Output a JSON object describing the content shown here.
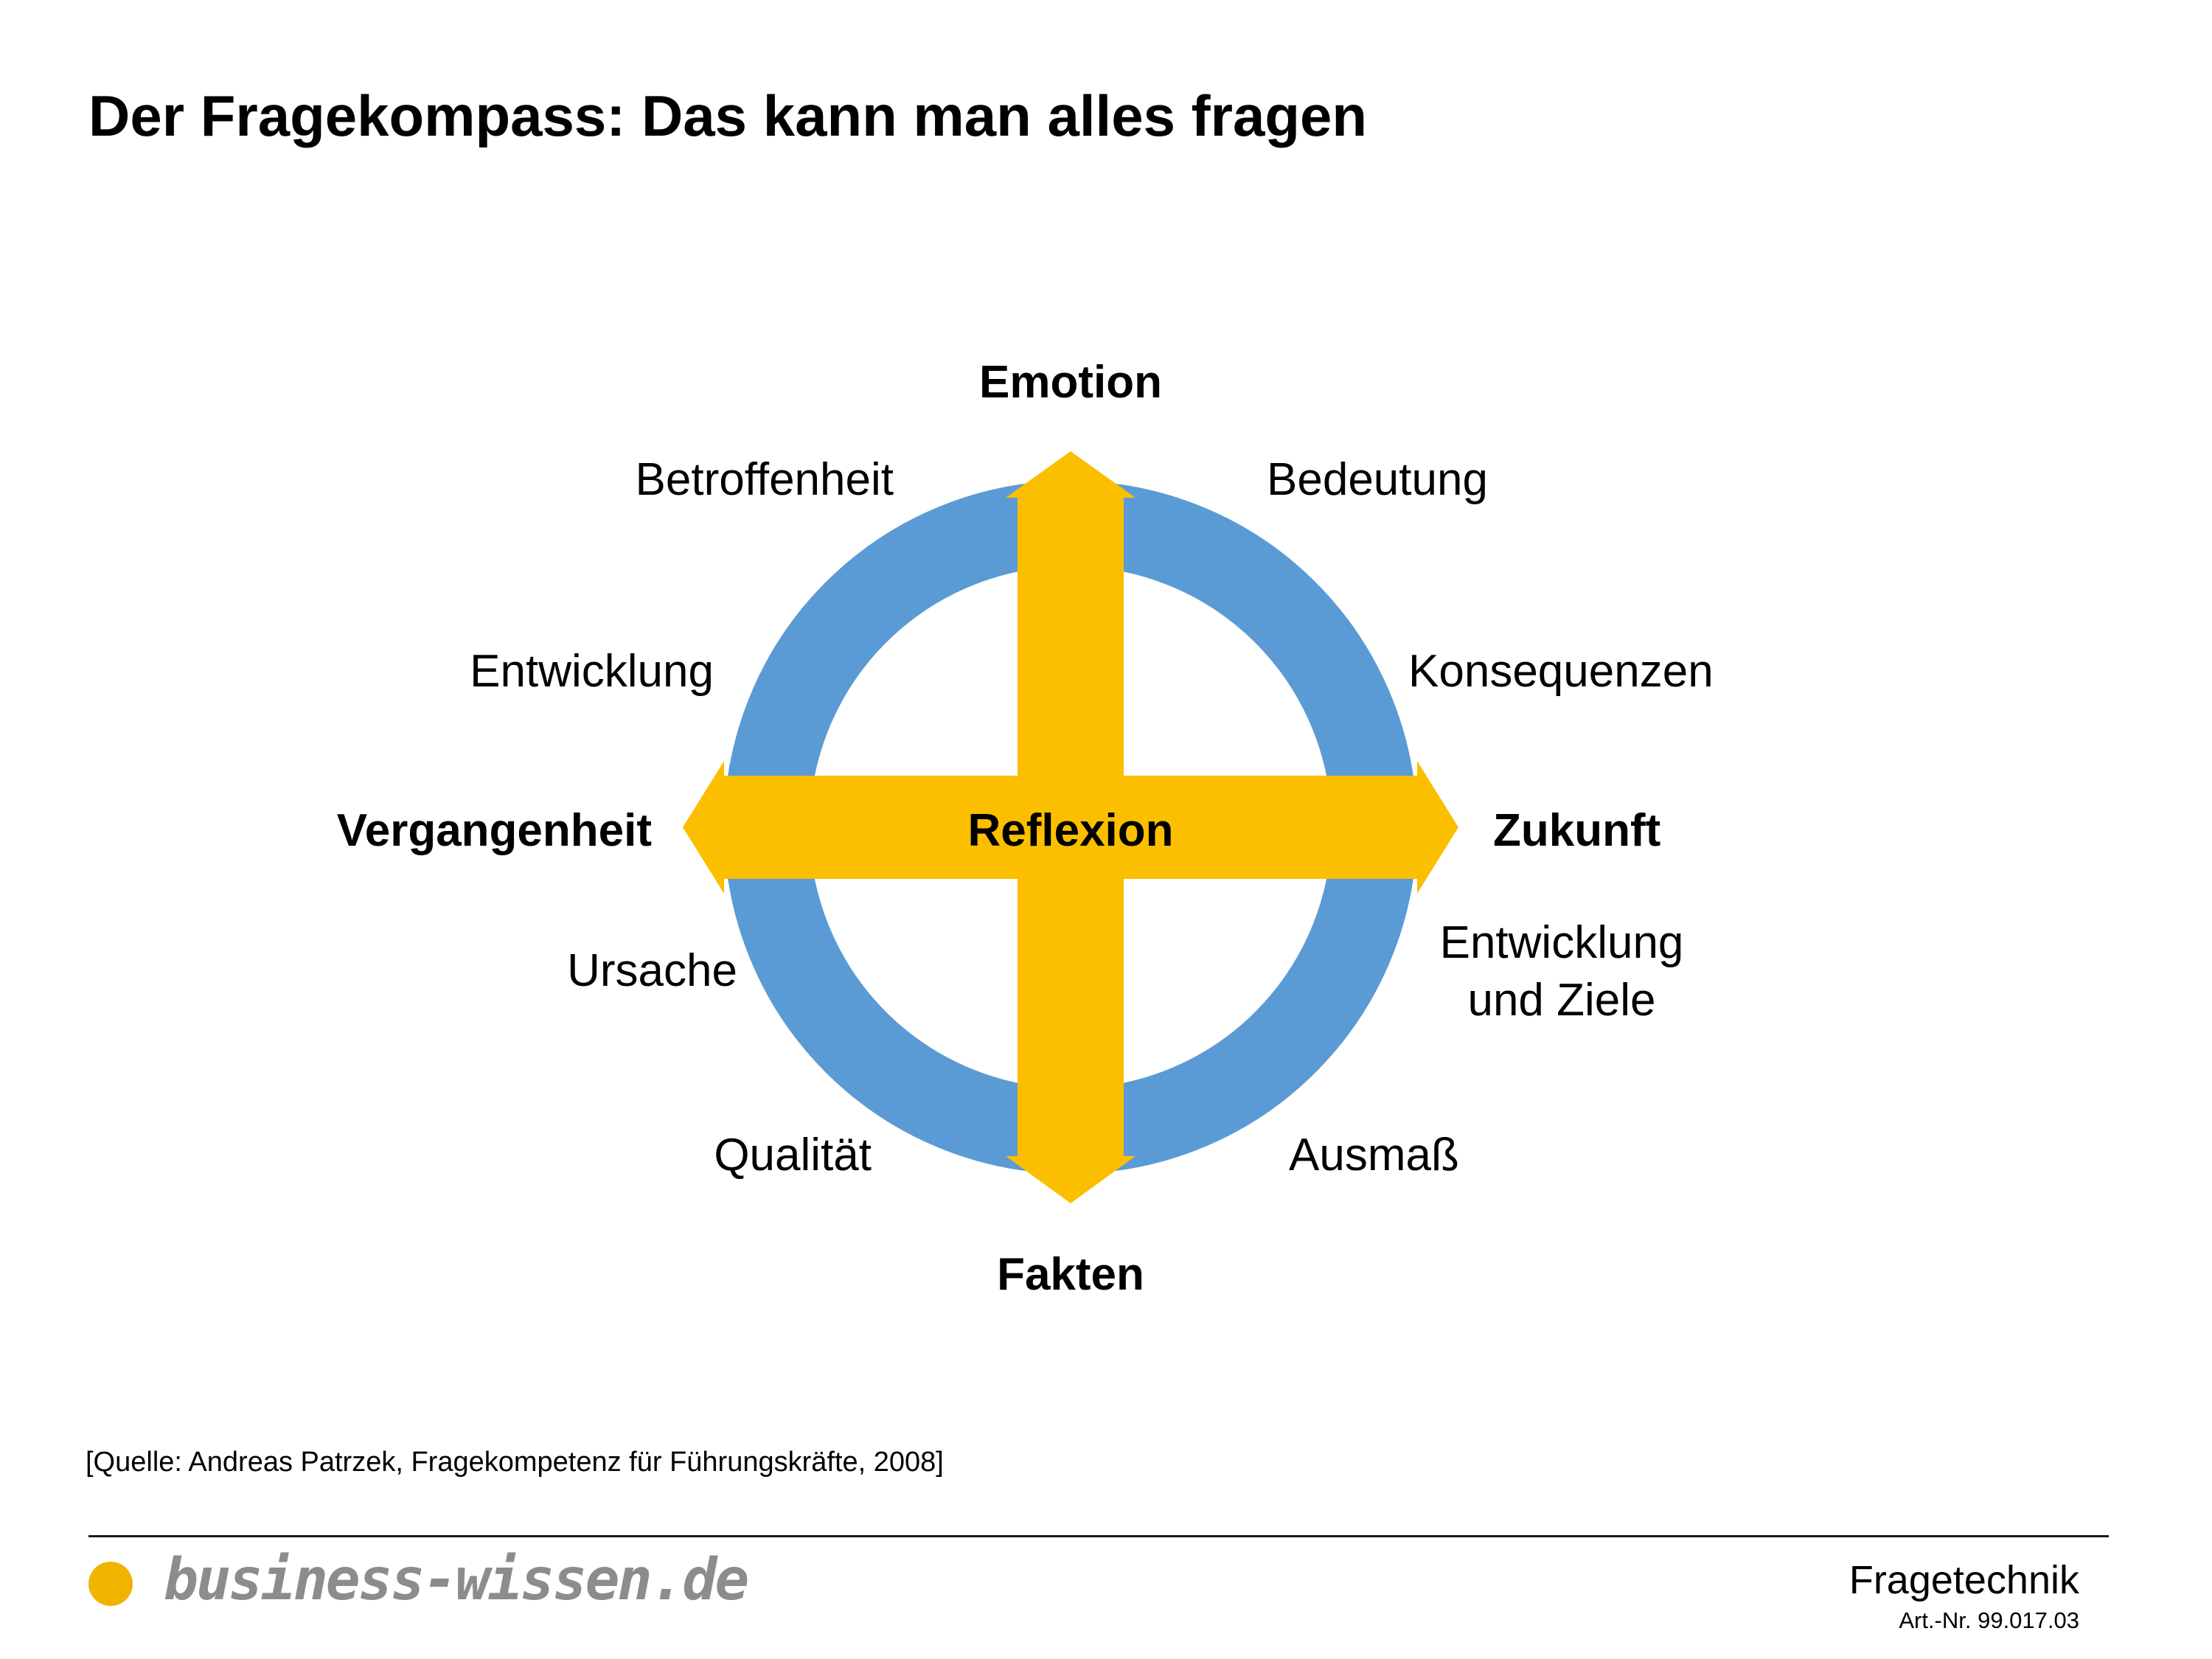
{
  "title": "Der Fragekompass: Das kann man alles fragen",
  "colors": {
    "ring": "#5b9bd5",
    "arrow": "#fcbf00",
    "text": "#000000",
    "brand_text": "#8c8c8c",
    "brand_dot": "#f2b300"
  },
  "compass": {
    "center": "Reflexion",
    "north": "Emotion",
    "south": "Fakten",
    "west": "Vergangenheit",
    "east": "Zukunft",
    "aspects": {
      "north_west": "Betroffenheit",
      "north_east": "Bedeutung",
      "west_upper": "Entwicklung",
      "east_upper": "Konsequenzen",
      "west_lower": "Ursache",
      "east_lower_line1": "Entwicklung",
      "east_lower_line2": "und Ziele",
      "south_west": "Qualität",
      "south_east": "Ausmaß"
    }
  },
  "source": "[Quelle: Andreas Patrzek, Fragekompetenz für Führungskräfte, 2008]",
  "footer": {
    "brand": "business-wissen.de",
    "brand_icon": "circle-dot-icon",
    "topic": "Fragetechnik",
    "article_number": "Art.-Nr. 99.017.03"
  }
}
